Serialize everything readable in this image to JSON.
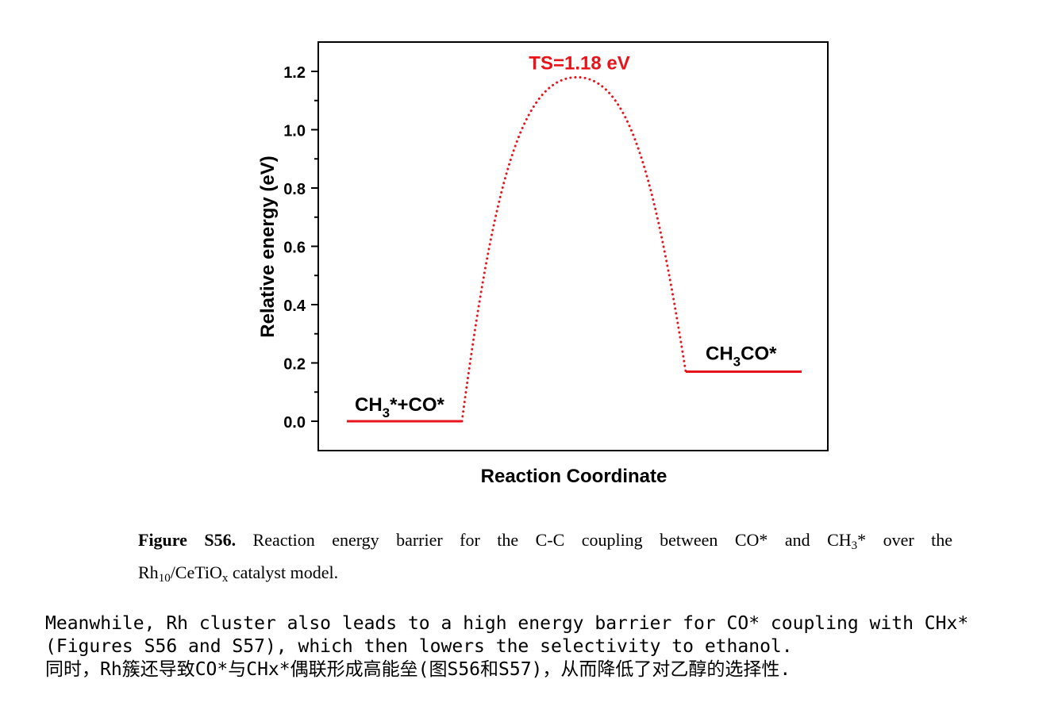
{
  "chart_data": {
    "type": "line",
    "title": "",
    "xlabel": "Reaction Coordinate",
    "ylabel": "Relative energy (eV)",
    "ylim": [
      -0.1,
      1.3
    ],
    "yticks": [
      "0.0",
      "0.2",
      "0.4",
      "0.6",
      "0.8",
      "1.0",
      "1.2"
    ],
    "grid": false,
    "color": "#e8141b",
    "states": [
      {
        "name": "CH3*+CO*",
        "label_main": "CH",
        "label_sub": "3",
        "label_rest": "*+CO*",
        "energy": 0.0
      },
      {
        "name": "CH3CO*",
        "label_main": "CH",
        "label_sub": "3",
        "label_rest": "CO*",
        "energy": 0.17
      }
    ],
    "transition_state": {
      "label": "TS=1.18 eV",
      "energy": 1.18
    }
  },
  "caption": {
    "label": "Figure S56.",
    "line1_text": " Reaction energy barrier for the C-C coupling between CO* and CH",
    "line1_sub": "3",
    "line1_end": "* over the",
    "line2_a": "Rh",
    "line2_sub1": "10",
    "line2_b": "/CeTiO",
    "line2_sub2": "x",
    "line2_c": " catalyst model."
  },
  "body_text": {
    "line1": "Meanwhile, Rh cluster also leads to a high energy barrier for CO* coupling with CHx*",
    "line2": "(Figures S56 and S57), which then lowers the selectivity to ethanol.",
    "line3": "同时，Rh簇还导致CO*与CHx*偶联形成高能垒(图S56和S57)，从而降低了对乙醇的选择性."
  }
}
